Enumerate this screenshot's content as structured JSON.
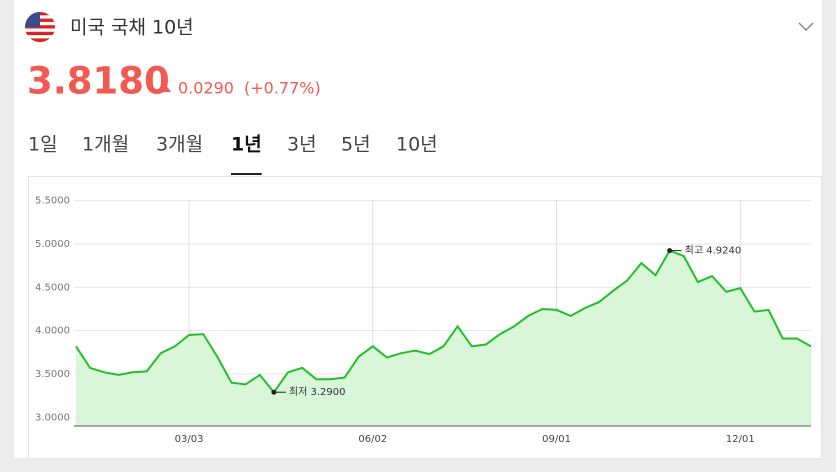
{
  "header": {
    "title": "미국 국채 10년",
    "price": "3.8180",
    "change": "0.0290",
    "change_pct": "(+0.77%)"
  },
  "tabs": {
    "items": [
      "1일",
      "1개월",
      "3개월",
      "1년",
      "3년",
      "5년",
      "10년"
    ],
    "selected": "1년"
  },
  "chart_data": {
    "type": "line",
    "categories": [
      null,
      null,
      null,
      null,
      null,
      null,
      null,
      null,
      "03/03",
      null,
      null,
      null,
      null,
      null,
      null,
      null,
      null,
      null,
      null,
      null,
      null,
      "06/02",
      null,
      null,
      null,
      null,
      null,
      null,
      null,
      null,
      null,
      null,
      null,
      null,
      "09/01",
      null,
      null,
      null,
      null,
      null,
      null,
      null,
      null,
      null,
      null,
      null,
      null,
      "12/01",
      null,
      null,
      null,
      null,
      null
    ],
    "series": [
      {
        "name": "미국 국채 10년",
        "color": "#22bf2b",
        "values": [
          3.82,
          3.57,
          3.52,
          3.49,
          3.52,
          3.53,
          3.74,
          3.82,
          3.95,
          3.96,
          3.7,
          3.4,
          3.38,
          3.49,
          3.29,
          3.52,
          3.57,
          3.44,
          3.44,
          3.46,
          3.7,
          3.82,
          3.69,
          3.74,
          3.77,
          3.73,
          3.82,
          4.05,
          3.82,
          3.84,
          3.96,
          4.05,
          4.17,
          4.25,
          4.24,
          4.17,
          4.26,
          4.33,
          4.46,
          4.58,
          4.78,
          4.64,
          4.924,
          4.86,
          4.56,
          4.63,
          4.45,
          4.49,
          4.22,
          4.24,
          3.91,
          3.91,
          3.818
        ]
      }
    ],
    "annotations": {
      "low": "최저 3.2900",
      "high": "최고 4.9240"
    },
    "ylim": [
      2.9,
      5.6
    ],
    "yticks": [
      {
        "value": 3.0,
        "label": "3.0000"
      },
      {
        "value": 3.5,
        "label": "3.5000"
      },
      {
        "value": 4.0,
        "label": "4.0000"
      },
      {
        "value": 4.5,
        "label": "4.5000"
      },
      {
        "value": 5.0,
        "label": "5.0000"
      },
      {
        "value": 5.5,
        "label": "5.5000"
      }
    ],
    "grid": true,
    "area_color": "#d9f6d9"
  }
}
